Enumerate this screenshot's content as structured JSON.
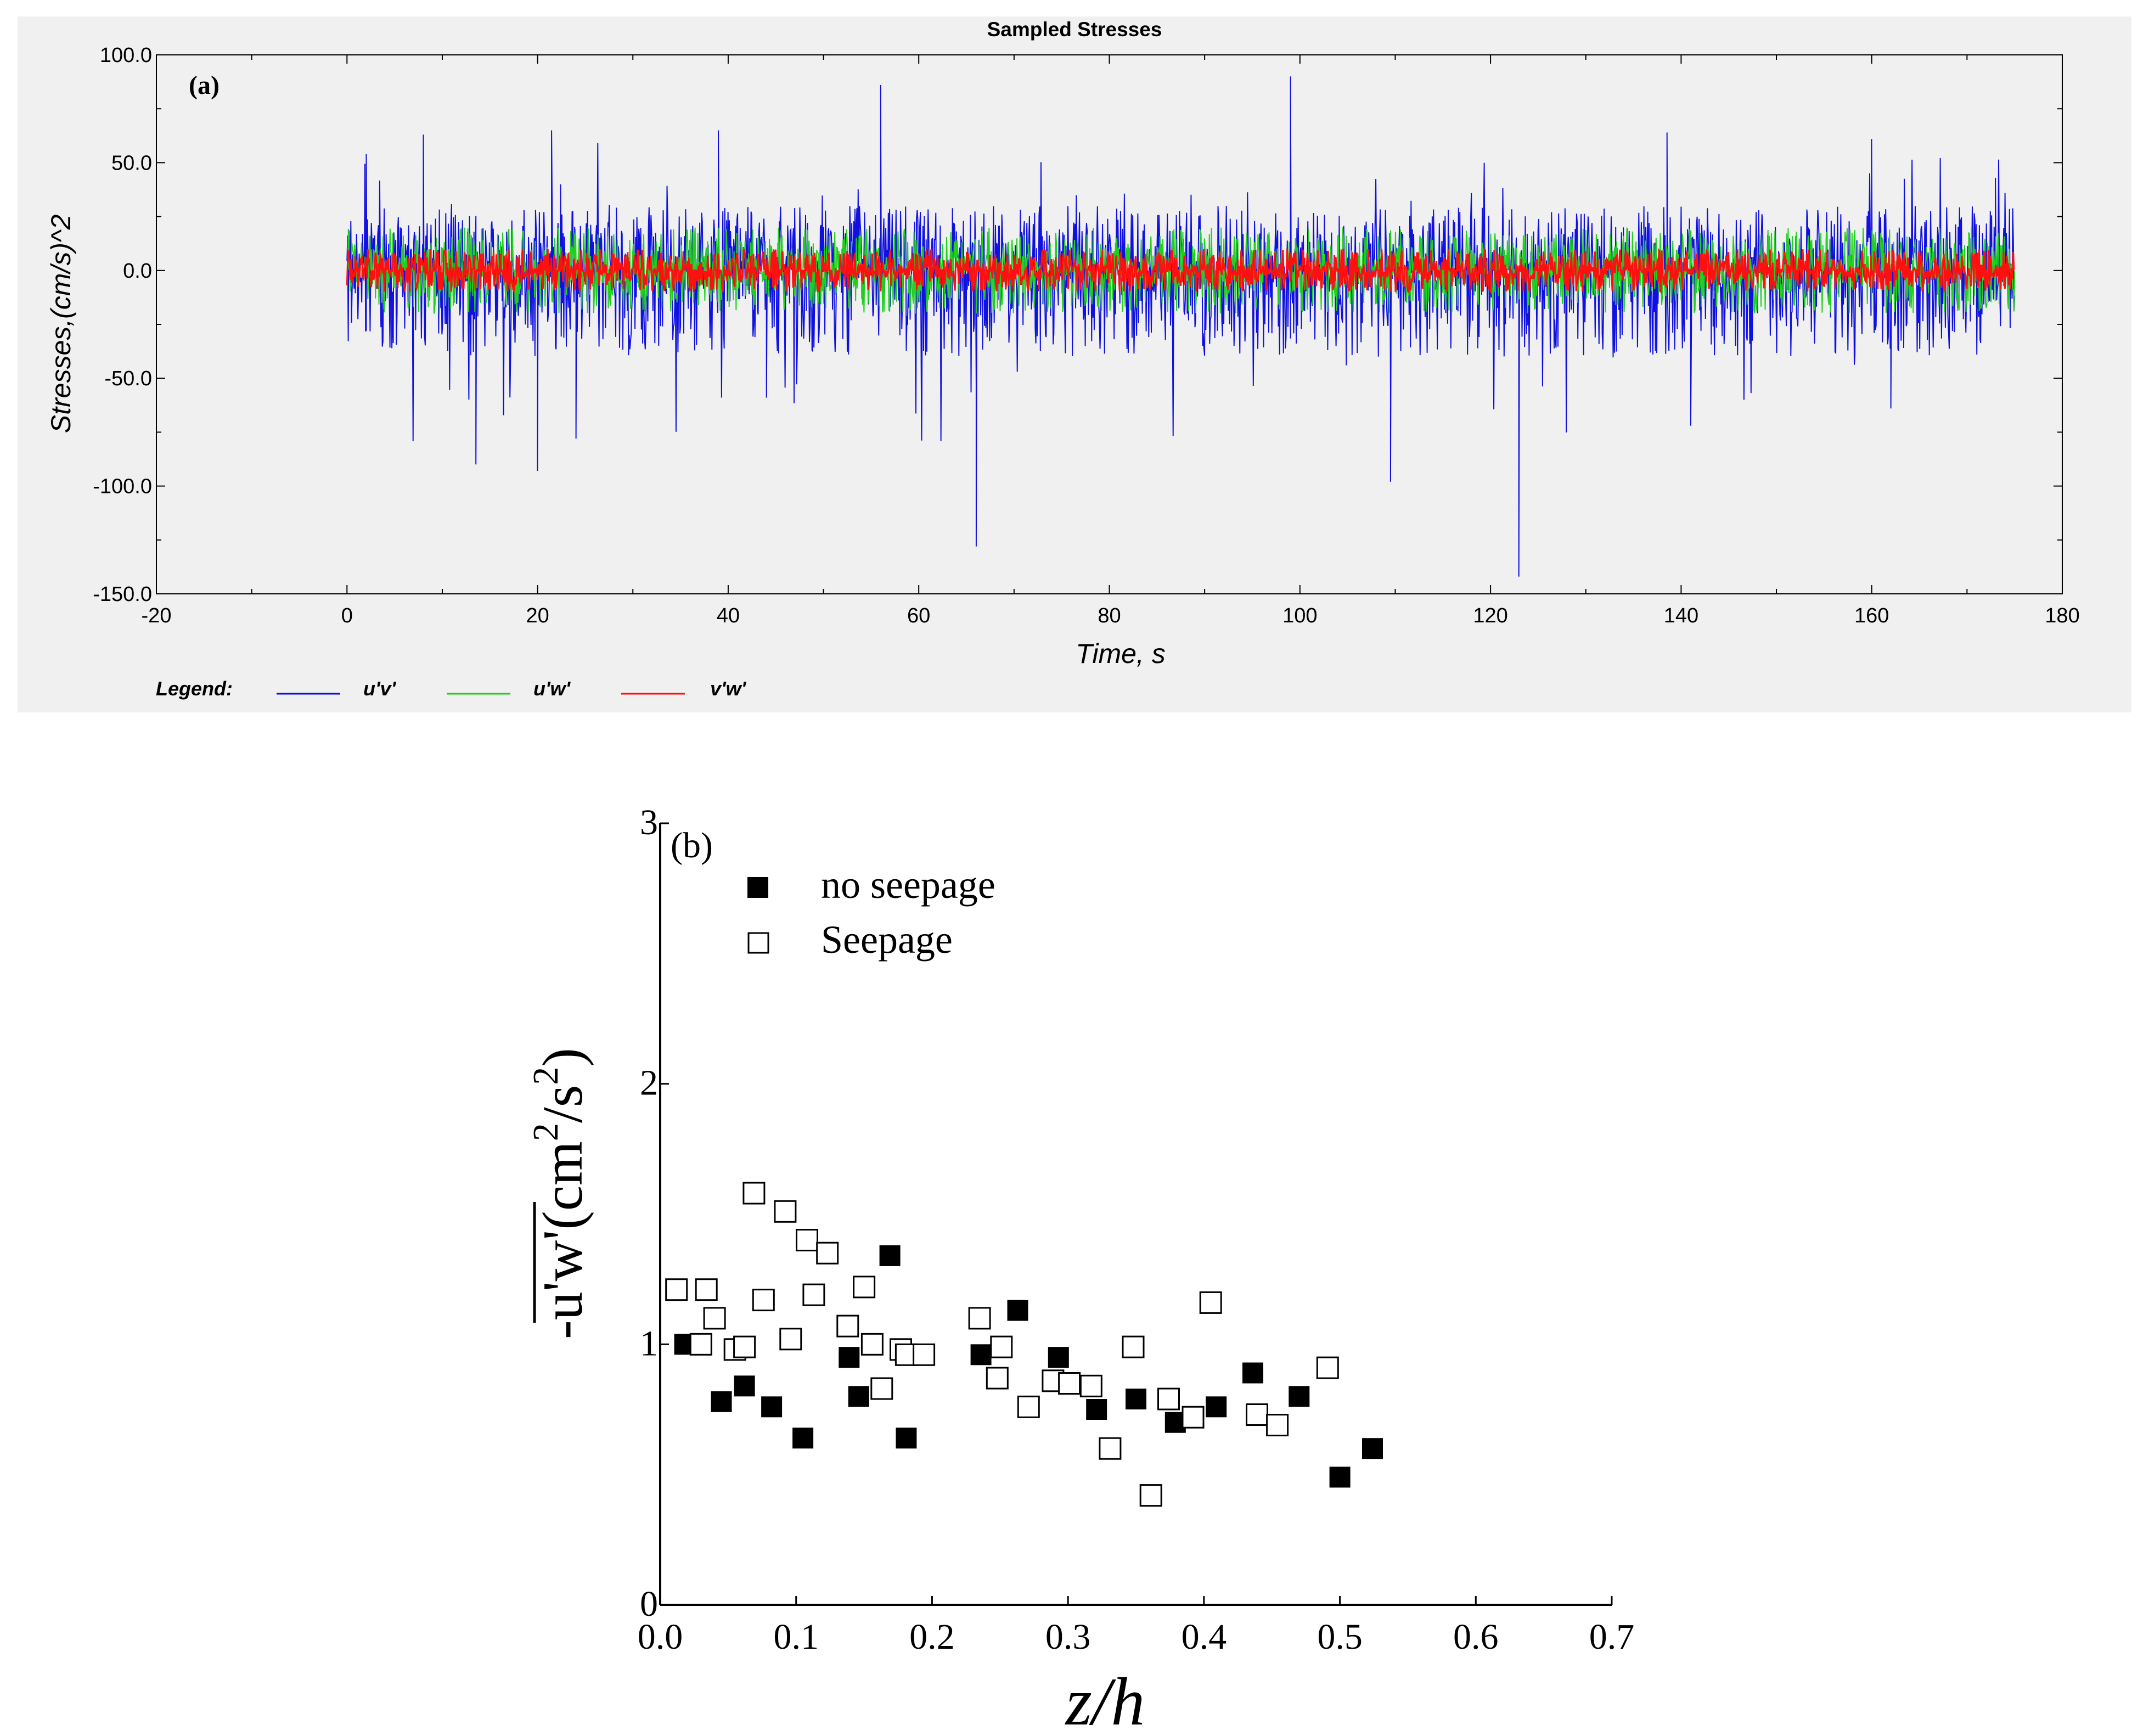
{
  "chart_data": [
    {
      "type": "line",
      "panel_label": "(a)",
      "title": "Sampled Stresses",
      "xlabel": "Time, s",
      "ylabel": "Stresses,(cm/s)^2",
      "xlim": [
        -20,
        180
      ],
      "ylim": [
        -150,
        100
      ],
      "xticks": [
        "-20",
        "0",
        "20",
        "40",
        "60",
        "80",
        "100",
        "120",
        "140",
        "160",
        "180"
      ],
      "yticks": [
        "100.0",
        "50.0",
        "0.0",
        "-50.0",
        "-100.0",
        "-150.0"
      ],
      "legend_title": "Legend:",
      "series": [
        {
          "name": "u'v'",
          "color": "#1010e0",
          "x_range": [
            0,
            175
          ],
          "typical_amplitude": [
            -40,
            30
          ]
        },
        {
          "name": "u'w'",
          "color": "#20d020",
          "x_range": [
            0,
            175
          ],
          "typical_amplitude": [
            -20,
            20
          ]
        },
        {
          "name": "v'w'",
          "color": "#ff1010",
          "x_range": [
            0,
            175
          ],
          "typical_amplitude": [
            -10,
            10
          ]
        }
      ],
      "spikes": [
        {
          "x": 2.0,
          "y": 54
        },
        {
          "x": 8.0,
          "y": 63
        },
        {
          "x": 13.5,
          "y": -90
        },
        {
          "x": 20.0,
          "y": -93
        },
        {
          "x": 21.5,
          "y": 65
        },
        {
          "x": 24.0,
          "y": -78
        },
        {
          "x": 39.0,
          "y": 65
        },
        {
          "x": 44.0,
          "y": -59
        },
        {
          "x": 56.0,
          "y": 86
        },
        {
          "x": 66.0,
          "y": -128
        },
        {
          "x": 99.0,
          "y": 90
        },
        {
          "x": 109.5,
          "y": -98
        },
        {
          "x": 123.0,
          "y": -142
        },
        {
          "x": 138.5,
          "y": 64
        },
        {
          "x": 141.0,
          "y": -72
        },
        {
          "x": 160.0,
          "y": 61
        },
        {
          "x": 162.0,
          "y": -64
        },
        {
          "x": 173.0,
          "y": 43
        }
      ]
    },
    {
      "type": "scatter",
      "panel_label": "(b)",
      "xlabel": "z/h",
      "ylabel": "-u'w'(cm2/s2)",
      "ylabel_main": "-u'w'",
      "ylabel_unit_open": "(cm",
      "ylabel_sup1": "2",
      "ylabel_unit_mid": "/s",
      "ylabel_sup2": "2",
      "ylabel_unit_close": ")",
      "xlim": [
        0,
        0.7
      ],
      "ylim": [
        0,
        3
      ],
      "xticks": [
        "0.0",
        "0.1",
        "0.2",
        "0.3",
        "0.4",
        "0.5",
        "0.6",
        "0.7"
      ],
      "yticks": [
        "0",
        "1",
        "2",
        "3"
      ],
      "series": [
        {
          "name": "no seepage",
          "marker": "filled-square",
          "points": [
            [
              0.018,
              1.0
            ],
            [
              0.045,
              0.78
            ],
            [
              0.062,
              0.84
            ],
            [
              0.082,
              0.76
            ],
            [
              0.105,
              0.64
            ],
            [
              0.139,
              0.95
            ],
            [
              0.146,
              0.8
            ],
            [
              0.169,
              1.34
            ],
            [
              0.181,
              0.64
            ],
            [
              0.236,
              0.96
            ],
            [
              0.263,
              1.13
            ],
            [
              0.293,
              0.95
            ],
            [
              0.321,
              0.75
            ],
            [
              0.35,
              0.79
            ],
            [
              0.379,
              0.7
            ],
            [
              0.409,
              0.76
            ],
            [
              0.436,
              0.89
            ],
            [
              0.47,
              0.8
            ],
            [
              0.5,
              0.49
            ],
            [
              0.524,
              0.6
            ]
          ]
        },
        {
          "name": "Seepage",
          "marker": "hollow-square",
          "points": [
            [
              0.012,
              1.21
            ],
            [
              0.03,
              1.0
            ],
            [
              0.034,
              1.21
            ],
            [
              0.04,
              1.1
            ],
            [
              0.055,
              0.98
            ],
            [
              0.062,
              0.99
            ],
            [
              0.069,
              1.58
            ],
            [
              0.076,
              1.17
            ],
            [
              0.092,
              1.51
            ],
            [
              0.096,
              1.02
            ],
            [
              0.108,
              1.4
            ],
            [
              0.113,
              1.19
            ],
            [
              0.123,
              1.35
            ],
            [
              0.138,
              1.07
            ],
            [
              0.15,
              1.22
            ],
            [
              0.156,
              1.0
            ],
            [
              0.163,
              0.83
            ],
            [
              0.177,
              0.98
            ],
            [
              0.181,
              0.96
            ],
            [
              0.194,
              0.96
            ],
            [
              0.235,
              1.1
            ],
            [
              0.248,
              0.87
            ],
            [
              0.251,
              0.99
            ],
            [
              0.271,
              0.76
            ],
            [
              0.289,
              0.86
            ],
            [
              0.301,
              0.85
            ],
            [
              0.317,
              0.84
            ],
            [
              0.331,
              0.6
            ],
            [
              0.348,
              0.99
            ],
            [
              0.361,
              0.42
            ],
            [
              0.374,
              0.79
            ],
            [
              0.392,
              0.72
            ],
            [
              0.405,
              1.16
            ],
            [
              0.439,
              0.73
            ],
            [
              0.454,
              0.69
            ],
            [
              0.491,
              0.91
            ]
          ]
        }
      ]
    }
  ]
}
